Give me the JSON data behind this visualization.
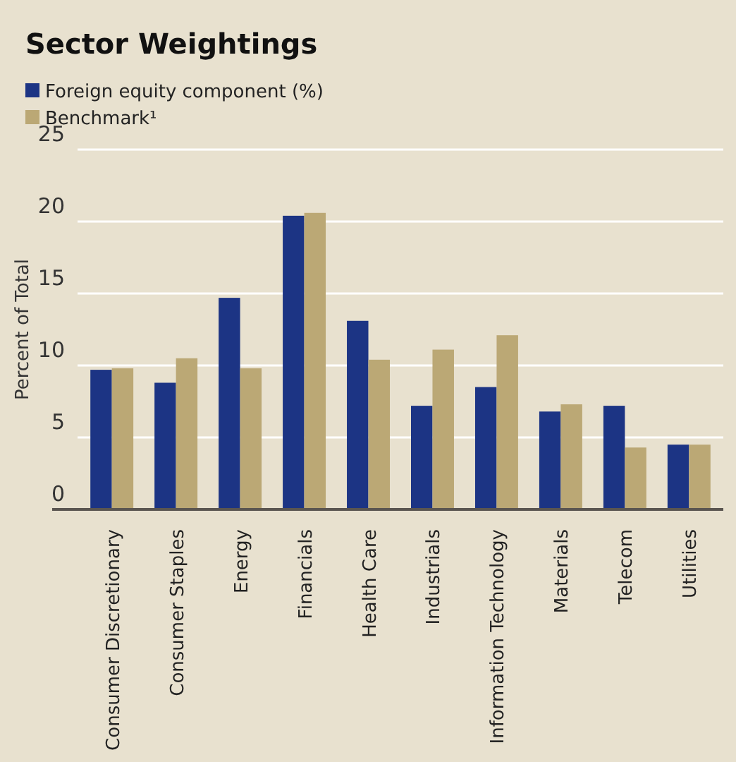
{
  "chart_data": {
    "type": "bar",
    "title": "Sector Weightings",
    "ylabel": "Percent of Total",
    "categories": [
      "Consumer Discretionary",
      "Consumer Staples",
      "Energy",
      "Financials",
      "Health Care",
      "Industrials",
      "Information Technology",
      "Materials",
      "Telecom",
      "Utilities"
    ],
    "series": [
      {
        "name": "Foreign equity component (%)",
        "color": "#1c3484",
        "values": [
          9.7,
          8.8,
          14.7,
          20.4,
          13.1,
          7.2,
          8.5,
          6.8,
          7.2,
          4.5
        ]
      },
      {
        "name": "Benchmark¹",
        "color": "#bba875",
        "values": [
          9.8,
          10.5,
          9.8,
          20.6,
          10.4,
          11.1,
          12.1,
          7.3,
          4.3,
          4.5
        ]
      }
    ],
    "ylim": [
      0,
      25
    ],
    "yticks": [
      0,
      5,
      10,
      15,
      20,
      25
    ],
    "grid": "y",
    "legend": "top left"
  }
}
